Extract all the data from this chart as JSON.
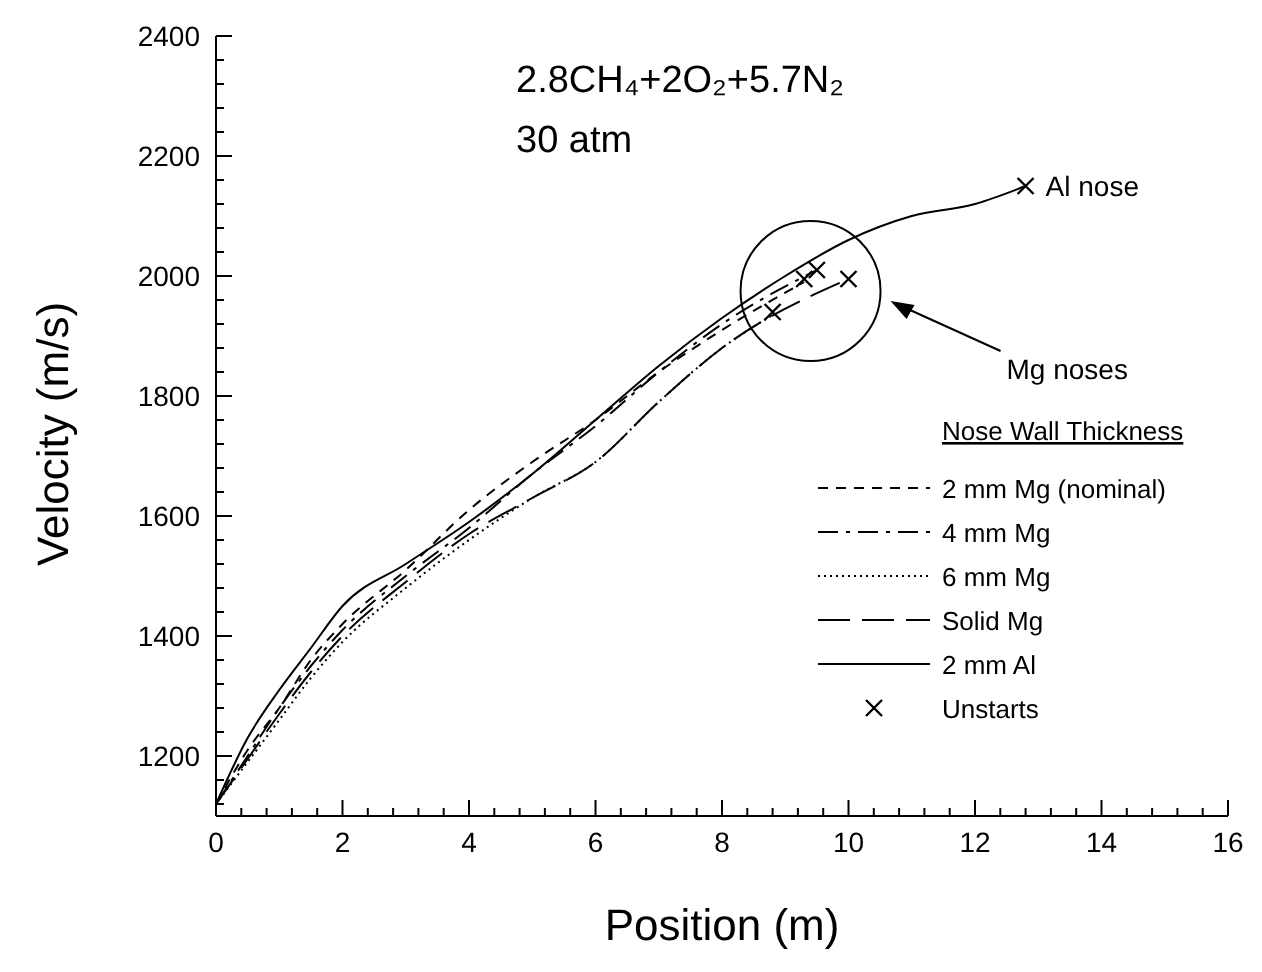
{
  "chart_data": {
    "type": "line",
    "xlabel": "Position (m)",
    "ylabel": "Velocity (m/s)",
    "legend_title": "Nose Wall Thickness",
    "legend": "bottom right",
    "grid": false,
    "annotations": [
      "2.8CH₄+2O₂+5.7N₂",
      "30 atm",
      {
        "text": "Al nose",
        "x": 12.8,
        "y": 2150
      },
      "Mg noses"
    ],
    "xlim": [
      0,
      16
    ],
    "ylim": [
      1100,
      2400
    ],
    "xticks": [
      0,
      {
        "value": 0.4,
        "label": null
      },
      {
        "value": 0.8,
        "label": null
      },
      {
        "value": 1.2,
        "label": null
      },
      {
        "value": 1.6,
        "label": null
      },
      2,
      {
        "value": 2.4,
        "label": null
      },
      {
        "value": 2.8,
        "label": null
      },
      {
        "value": 3.2,
        "label": null
      },
      {
        "value": 3.6,
        "label": null
      },
      4,
      {
        "value": 4.4,
        "label": null
      },
      {
        "value": 4.8,
        "label": null
      },
      {
        "value": 5.2,
        "label": null
      },
      {
        "value": 5.6,
        "label": null
      },
      6,
      {
        "value": 6.4,
        "label": null
      },
      {
        "value": 6.8,
        "label": null
      },
      {
        "value": 7.2,
        "label": null
      },
      {
        "value": 7.6,
        "label": null
      },
      8,
      {
        "value": 8.4,
        "label": null
      },
      {
        "value": 8.8,
        "label": null
      },
      {
        "value": 9.2,
        "label": null
      },
      {
        "value": 9.6,
        "label": null
      },
      10,
      {
        "value": 10.4,
        "label": null
      },
      {
        "value": 10.8,
        "label": null
      },
      {
        "value": 11.2,
        "label": null
      },
      {
        "value": 11.6,
        "label": null
      },
      12,
      {
        "value": 12.4,
        "label": null
      },
      {
        "value": 12.8,
        "label": null
      },
      {
        "value": 13.2,
        "label": null
      },
      {
        "value": 13.6,
        "label": null
      },
      14,
      {
        "value": 14.4,
        "label": null
      },
      {
        "value": 14.8,
        "label": null
      },
      {
        "value": 15.2,
        "label": null
      },
      {
        "value": 15.6,
        "label": null
      },
      16
    ],
    "yticks": [
      {
        "value": 1120,
        "label": null
      },
      {
        "value": 1160,
        "label": null
      },
      1200,
      {
        "value": 1240,
        "label": null
      },
      {
        "value": 1280,
        "label": null
      },
      {
        "value": 1320,
        "label": null
      },
      {
        "value": 1360,
        "label": null
      },
      1400,
      {
        "value": 1440,
        "label": null
      },
      {
        "value": 1480,
        "label": null
      },
      {
        "value": 1520,
        "label": null
      },
      {
        "value": 1560,
        "label": null
      },
      1600,
      {
        "value": 1640,
        "label": null
      },
      {
        "value": 1680,
        "label": null
      },
      {
        "value": 1720,
        "label": null
      },
      {
        "value": 1760,
        "label": null
      },
      1800,
      {
        "value": 1840,
        "label": null
      },
      {
        "value": 1880,
        "label": null
      },
      {
        "value": 1920,
        "label": null
      },
      {
        "value": 1960,
        "label": null
      },
      2000,
      {
        "value": 2040,
        "label": null
      },
      {
        "value": 2080,
        "label": null
      },
      {
        "value": 2120,
        "label": null
      },
      {
        "value": 2160,
        "label": null
      },
      2200,
      {
        "value": 2240,
        "label": null
      },
      {
        "value": 2280,
        "label": null
      },
      {
        "value": 2320,
        "label": null
      },
      {
        "value": 2360,
        "label": null
      },
      2400
    ],
    "series": [
      {
        "name": "2 mm Mg (nominal)",
        "color": "#000000",
        "line_style": "dashed",
        "marker": "none",
        "x": [
          0,
          0.5,
          1,
          1.5,
          2,
          3,
          4,
          5,
          6,
          7,
          8,
          9.3
        ],
        "values": [
          1120,
          1210,
          1280,
          1360,
          1420,
          1510,
          1610,
          1690,
          1760,
          1840,
          1910,
          1990
        ]
      },
      {
        "name": "4 mm Mg",
        "color": "#000000",
        "line_style": "dashdot",
        "marker": "none",
        "x": [
          0,
          0.5,
          1,
          1.5,
          2,
          3,
          4,
          5,
          6,
          7,
          8,
          9.5
        ],
        "values": [
          1120,
          1200,
          1280,
          1350,
          1410,
          1500,
          1580,
          1670,
          1750,
          1840,
          1920,
          2010
        ]
      },
      {
        "name": "6 mm Mg",
        "color": "#000000",
        "line_style": "dotted",
        "marker": "none",
        "x": [
          0,
          0.5,
          1,
          1.5,
          2,
          3,
          4,
          5,
          6,
          7,
          8,
          8.8
        ],
        "values": [
          1120,
          1190,
          1260,
          1330,
          1390,
          1480,
          1560,
          1630,
          1690,
          1790,
          1880,
          1935
        ]
      },
      {
        "name": "Solid Mg",
        "color": "#000000",
        "line_style": "longdash",
        "marker": "none",
        "x": [
          0,
          0.5,
          1,
          1.5,
          2,
          3,
          4,
          5,
          6,
          7,
          8,
          10
        ],
        "values": [
          1120,
          1195,
          1270,
          1340,
          1400,
          1490,
          1570,
          1630,
          1690,
          1790,
          1880,
          1995
        ]
      },
      {
        "name": "2 mm Al",
        "color": "#000000",
        "line_style": "solid",
        "marker": "none",
        "x": [
          0,
          0.5,
          1,
          1.5,
          2,
          3,
          4,
          5,
          6,
          7,
          8,
          9,
          10,
          11,
          12,
          12.8
        ],
        "values": [
          1120,
          1230,
          1310,
          1380,
          1450,
          1520,
          1590,
          1670,
          1760,
          1850,
          1930,
          2000,
          2060,
          2100,
          2120,
          2150
        ]
      },
      {
        "name": "Unstarts",
        "type": "scatter",
        "color": "#000000",
        "marker": "cross",
        "x": [
          8.8,
          9.3,
          9.5,
          10,
          12.8
        ],
        "values": [
          1940,
          1995,
          2010,
          1995,
          2150
        ]
      }
    ]
  }
}
